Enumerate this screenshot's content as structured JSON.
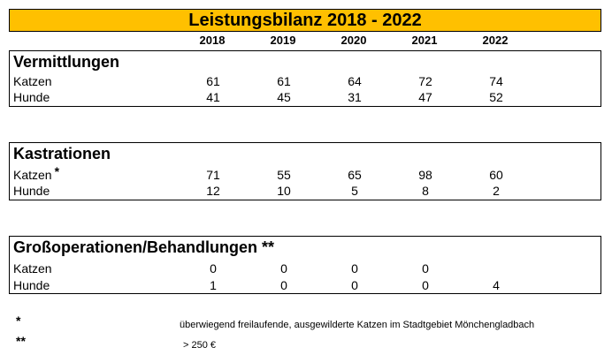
{
  "title": "Leistungsbilanz 2018 - 2022",
  "years": [
    "2018",
    "2019",
    "2020",
    "2021",
    "2022"
  ],
  "sections": [
    {
      "title": "Vermittlungen",
      "title_suffix": "",
      "rows": [
        {
          "label": "Katzen",
          "star": "",
          "values": [
            "61",
            "61",
            "64",
            "72",
            "74"
          ]
        },
        {
          "label": "Hunde",
          "star": "",
          "values": [
            "41",
            "45",
            "31",
            "47",
            "52"
          ]
        }
      ]
    },
    {
      "title": "Kastrationen",
      "title_suffix": "",
      "rows": [
        {
          "label": "Katzen",
          "star": "*",
          "values": [
            "71",
            "55",
            "65",
            "98",
            "60"
          ]
        },
        {
          "label": "Hunde",
          "star": "",
          "values": [
            "12",
            "10",
            "5",
            "8",
            "2"
          ]
        }
      ]
    },
    {
      "title": "Großoperationen/Behandlungen",
      "title_suffix": " **",
      "rows": [
        {
          "label": "Katzen",
          "star": "",
          "values": [
            "0",
            "0",
            "0",
            "0",
            ""
          ]
        },
        {
          "label": "Hunde",
          "star": "",
          "values": [
            "1",
            "0",
            "0",
            "0",
            "4"
          ]
        }
      ]
    }
  ],
  "footnotes": [
    {
      "mark": "*",
      "text": "überwiegend freilaufende, ausgewilderte Katzen im Stadtgebiet Mönchengladbach"
    },
    {
      "mark": "**",
      "text": "> 250 €"
    }
  ]
}
